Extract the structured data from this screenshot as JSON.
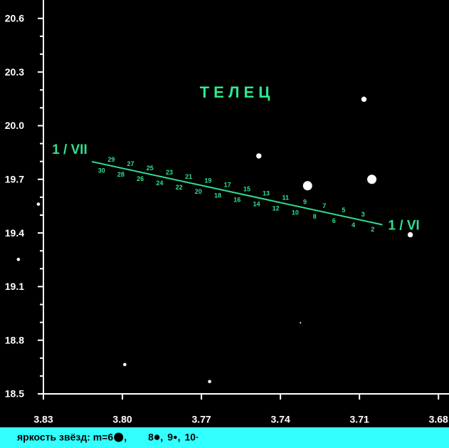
{
  "chart_data": {
    "type": "scatter",
    "title": "Т Е Л Е Ц",
    "xlim": [
      3.83,
      3.676
    ],
    "ylim": [
      18.5,
      20.703
    ],
    "xticks": [
      {
        "value": 3.83,
        "label": "3.83"
      },
      {
        "value": 3.8,
        "label": "3.80"
      },
      {
        "value": 3.77,
        "label": "3.77"
      },
      {
        "value": 3.74,
        "label": "3.74"
      },
      {
        "value": 3.71,
        "label": "3.71"
      },
      {
        "value": 3.68,
        "label": "3.68"
      }
    ],
    "yticks": [
      {
        "value": 18.5,
        "label": "18.5"
      },
      {
        "value": 18.8,
        "label": "18.8"
      },
      {
        "value": 19.1,
        "label": "19.1"
      },
      {
        "value": 19.4,
        "label": "19.4"
      },
      {
        "value": 19.7,
        "label": "19.7"
      },
      {
        "value": 20.0,
        "label": "20.0"
      },
      {
        "value": 20.3,
        "label": "20.3"
      },
      {
        "value": 20.6,
        "label": "20.6"
      }
    ],
    "yminor_ticks": [
      18.6,
      18.7,
      18.9,
      19.0,
      19.2,
      19.3,
      19.5,
      19.6,
      19.8,
      19.9,
      20.1,
      20.2,
      20.4,
      20.5
    ],
    "stars": {
      "color": "#ffffff",
      "x": [
        3.8319,
        3.8395,
        3.7991,
        3.7669,
        3.7324,
        3.7482,
        3.7297,
        3.7083,
        3.7053,
        3.6907
      ],
      "y": [
        19.561,
        19.252,
        18.664,
        18.569,
        18.898,
        19.831,
        19.664,
        20.148,
        19.7,
        19.39
      ],
      "magnitude": [
        9,
        9,
        9,
        9,
        10,
        8,
        6,
        8,
        6,
        8
      ]
    },
    "path": {
      "color": "#2fe08f",
      "x": [
        3.8116,
        3.7013
      ],
      "y": [
        19.799,
        19.446
      ],
      "labels": [
        "1 / VII",
        "1 / VI"
      ],
      "days": [
        2,
        3,
        4,
        5,
        6,
        7,
        8,
        9,
        10,
        11,
        12,
        13,
        14,
        15,
        16,
        17,
        18,
        19,
        20,
        21,
        22,
        23,
        24,
        25,
        26,
        27,
        28,
        29,
        30
      ]
    },
    "legend": {
      "label": "яркость звёзд: m=",
      "separator": ",",
      "magnitudes": [
        6,
        8,
        9,
        10
      ]
    }
  }
}
